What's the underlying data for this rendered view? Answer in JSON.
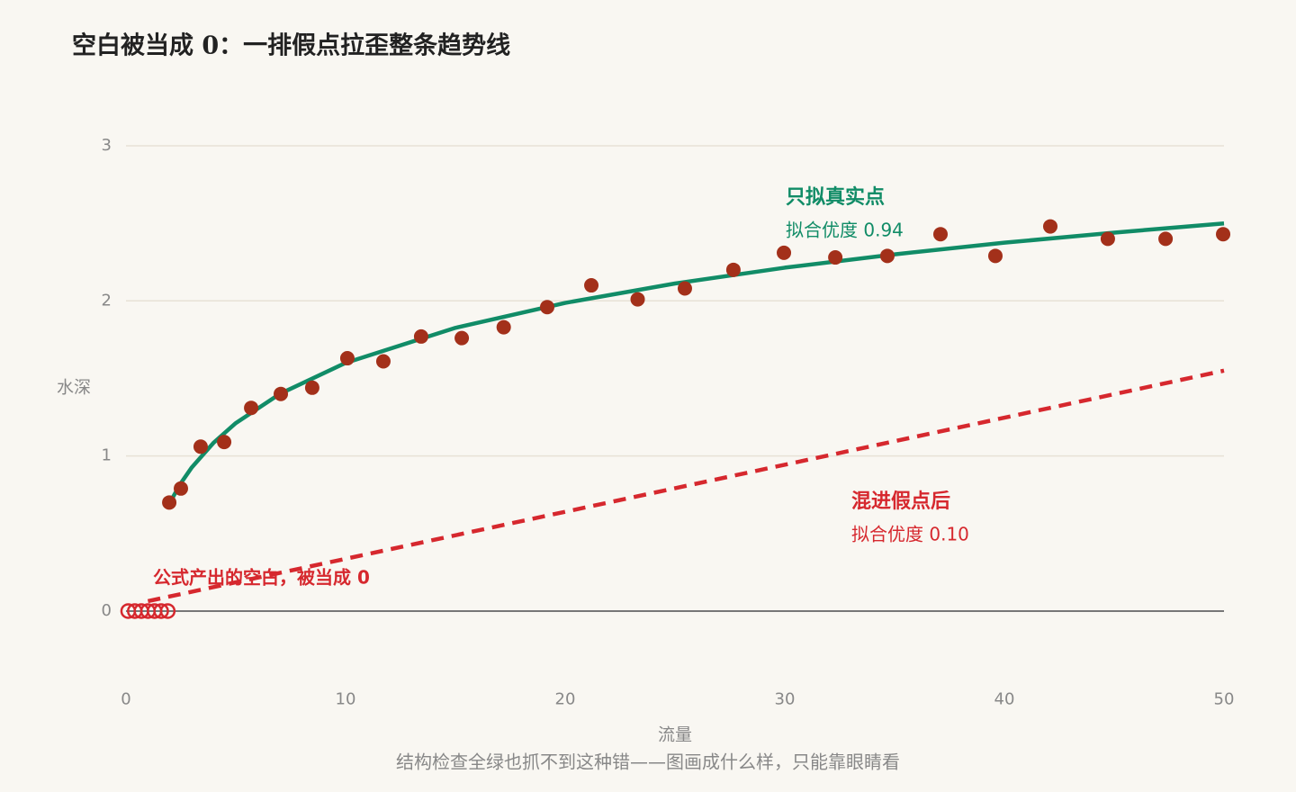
{
  "chart_data": {
    "type": "scatter",
    "title": "空白被当成 0：一排假点拉歪整条趋势线",
    "x_label": "流量",
    "y_label": "水深",
    "caption": "结构检查全绿也抓不到这种错——图画成什么样，只能靠眼睛看",
    "xlim": [
      0,
      50
    ],
    "ylim": [
      -0.45,
      3.2
    ],
    "xticks": [
      0,
      10,
      20,
      30,
      40,
      50
    ],
    "yticks": [
      0,
      1,
      2,
      3
    ],
    "grid": true,
    "series": [
      {
        "style": "dot",
        "color": "#a3301a",
        "x": [
          1.97,
          2.5,
          3.4,
          4.47,
          5.7,
          7.05,
          8.48,
          10.08,
          11.72,
          13.44,
          15.29,
          17.2,
          19.18,
          21.19,
          23.3,
          25.45,
          27.66,
          29.96,
          32.3,
          34.67,
          37.09,
          39.59,
          42.09,
          44.71,
          47.34,
          49.96
        ],
        "values": [
          0.7,
          0.79,
          1.06,
          1.09,
          1.31,
          1.4,
          1.44,
          1.63,
          1.61,
          1.77,
          1.76,
          1.83,
          1.96,
          2.1,
          2.01,
          2.08,
          2.2,
          2.31,
          2.28,
          2.29,
          2.43,
          2.29,
          2.48,
          2.4,
          2.4,
          2.43
        ]
      },
      {
        "style": "ring",
        "color": "#d6282e",
        "x": [
          0.1,
          0.4,
          0.7,
          1.0,
          1.3,
          1.6,
          1.9
        ],
        "values": [
          0,
          0,
          0,
          0,
          0,
          0,
          0
        ]
      },
      {
        "style": "line",
        "color": "#118c67",
        "x": [
          2,
          2.5,
          3,
          4,
          5,
          7,
          10,
          15,
          20,
          25,
          30,
          35,
          40,
          45,
          50
        ],
        "values": [
          0.7,
          0.825,
          0.927,
          1.087,
          1.212,
          1.4,
          1.6,
          1.826,
          1.987,
          2.112,
          2.214,
          2.3,
          2.375,
          2.44,
          2.499
        ]
      },
      {
        "style": "dashed",
        "color": "#d6282e",
        "x": [
          1,
          50
        ],
        "values": [
          0.064,
          1.55
        ]
      }
    ],
    "annotations": [
      {
        "title": "只拟真实点",
        "text": "拟合优度 0.94",
        "color": "#118c67"
      },
      {
        "title": "混进假点后",
        "text": "拟合优度 0.10",
        "color": "#d6282e"
      },
      {
        "text": "公式产出的空白，被当成 0",
        "color": "#d6282e"
      }
    ]
  }
}
